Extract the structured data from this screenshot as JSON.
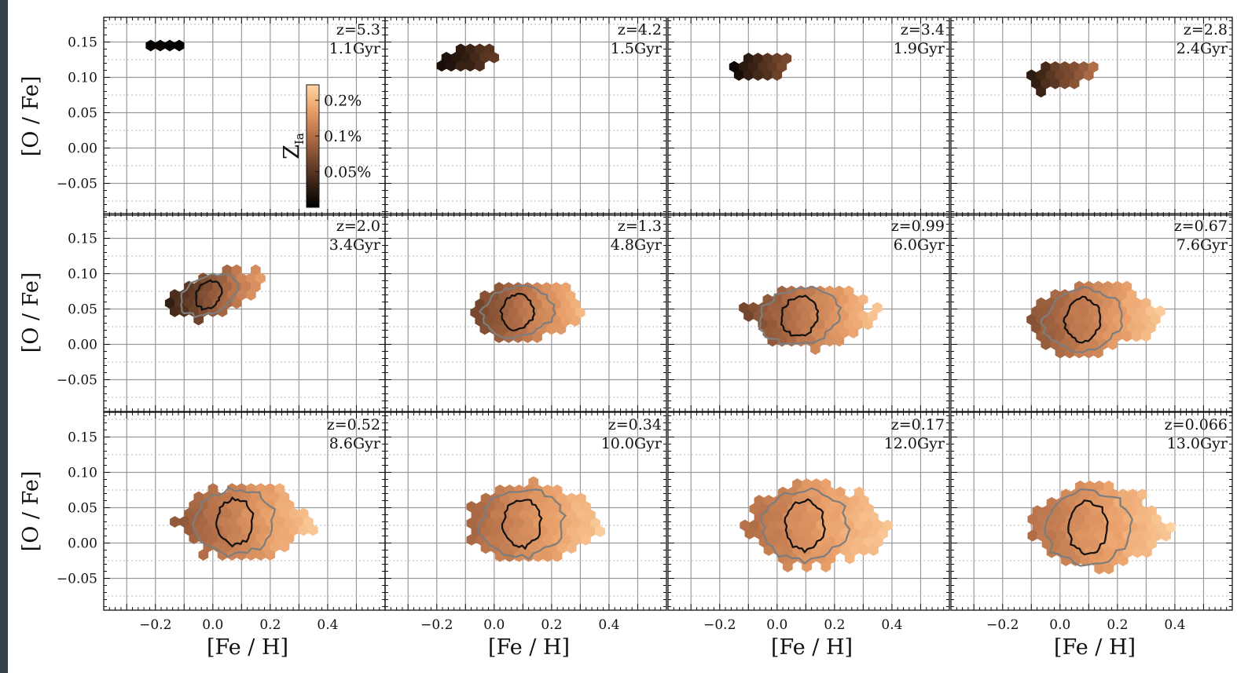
{
  "colors": {
    "frame": "#36404a",
    "panel_bg": "#ffffff",
    "colormap": [
      "#000000",
      "#3b2416",
      "#7a4a30",
      "#b8734b",
      "#eaa16b",
      "#ffd6a5"
    ],
    "contour_outer": "#7d7d7d",
    "contour_inner": "#111111"
  },
  "chart_data": {
    "type": "heatmap",
    "subtype": "hexbin",
    "grid": true,
    "layout": "3 rows x 4 columns, shared axes",
    "xlabel": "[Fe / H]",
    "ylabel": "[O / Fe]",
    "xlim": [
      -0.38,
      0.6
    ],
    "ylim": [
      -0.095,
      0.185
    ],
    "xticks": [
      "−0.2",
      "0.0",
      "0.2",
      "0.4"
    ],
    "xtick_values": [
      -0.2,
      0.0,
      0.2,
      0.4
    ],
    "yticks": [
      "0.15",
      "0.10",
      "0.05",
      "0.00",
      "−0.05"
    ],
    "ytick_values": [
      0.15,
      0.1,
      0.05,
      0.0,
      -0.05
    ],
    "colorbar": {
      "label": "Z",
      "label_subscript": "Ia",
      "ticks": [
        "0.2%",
        "0.1%",
        "0.05%"
      ],
      "tick_values": [
        0.2,
        0.1,
        0.05
      ],
      "range": [
        0.025,
        0.27
      ],
      "scale": "log",
      "placement": "inside top-left panel"
    },
    "panels": [
      {
        "z": "z=5.3",
        "age": "1.1Gyr",
        "center": [
          -0.15,
          0.145
        ],
        "spread": [
          0.07,
          0.008
        ],
        "tilt": 0.0,
        "cmin": 0.0,
        "cmax": 0.05,
        "contours": false
      },
      {
        "z": "z=4.2",
        "age": "1.5Gyr",
        "center": [
          -0.1,
          0.128
        ],
        "spread": [
          0.12,
          0.016
        ],
        "tilt": 0.12,
        "cmin": 0.0,
        "cmax": 0.4,
        "contours": false
      },
      {
        "z": "z=3.4",
        "age": "1.9Gyr",
        "center": [
          -0.05,
          0.115
        ],
        "spread": [
          0.12,
          0.02
        ],
        "tilt": 0.15,
        "cmin": 0.0,
        "cmax": 0.55,
        "contours": false
      },
      {
        "z": "z=2.8",
        "age": "2.4Gyr",
        "center": [
          0.0,
          0.103
        ],
        "spread": [
          0.14,
          0.022
        ],
        "tilt": 0.2,
        "cmin": 0.05,
        "cmax": 0.7,
        "contours": false
      },
      {
        "z": "z=2.0",
        "age": "3.4Gyr",
        "center": [
          0.0,
          0.07
        ],
        "spread": [
          0.16,
          0.035
        ],
        "tilt": 0.3,
        "cmin": 0.15,
        "cmax": 0.85,
        "contours": true
      },
      {
        "z": "z=1.3",
        "age": "4.8Gyr",
        "center": [
          0.1,
          0.045
        ],
        "spread": [
          0.2,
          0.045
        ],
        "tilt": 0.1,
        "cmin": 0.3,
        "cmax": 0.95,
        "contours": true
      },
      {
        "z": "z=0.99",
        "age": "6.0Gyr",
        "center": [
          0.1,
          0.04
        ],
        "spread": [
          0.22,
          0.05
        ],
        "tilt": 0.1,
        "cmin": 0.35,
        "cmax": 0.97,
        "contours": true
      },
      {
        "z": "z=0.67",
        "age": "7.6Gyr",
        "center": [
          0.1,
          0.035
        ],
        "spread": [
          0.22,
          0.055
        ],
        "tilt": 0.1,
        "cmin": 0.4,
        "cmax": 0.98,
        "contours": true
      },
      {
        "z": "z=0.52",
        "age": "8.6Gyr",
        "center": [
          0.1,
          0.03
        ],
        "spread": [
          0.22,
          0.06
        ],
        "tilt": 0.05,
        "cmin": 0.45,
        "cmax": 0.98,
        "contours": true
      },
      {
        "z": "z=0.34",
        "age": "10.0Gyr",
        "center": [
          0.12,
          0.028
        ],
        "spread": [
          0.23,
          0.062
        ],
        "tilt": 0.05,
        "cmin": 0.5,
        "cmax": 0.99,
        "contours": true
      },
      {
        "z": "z=0.17",
        "age": "12.0Gyr",
        "center": [
          0.12,
          0.025
        ],
        "spread": [
          0.24,
          0.065
        ],
        "tilt": 0.05,
        "cmin": 0.55,
        "cmax": 0.99,
        "contours": true
      },
      {
        "z": "z=0.066",
        "age": "13.0Gyr",
        "center": [
          0.12,
          0.022
        ],
        "spread": [
          0.24,
          0.066
        ],
        "tilt": 0.05,
        "cmin": 0.55,
        "cmax": 1.0,
        "contours": true
      }
    ]
  }
}
